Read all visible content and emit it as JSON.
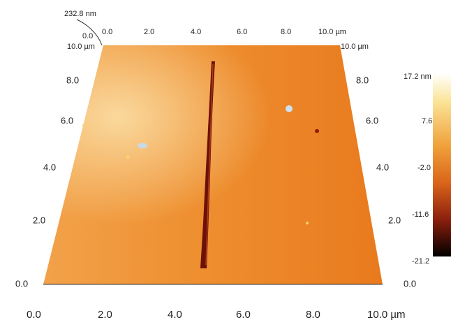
{
  "height_label": "232.8 nm",
  "origin_label": "0.0",
  "top_axis": {
    "ticks": [
      "0.0",
      "2.0",
      "4.0",
      "6.0",
      "8.0",
      "10.0 µm"
    ]
  },
  "left_top_label": "10.0 µm",
  "right_top_label": "10.0 µm",
  "left_axis": {
    "ticks": [
      "8.0",
      "6.0",
      "4.0",
      "2.0",
      "0.0"
    ]
  },
  "right_axis": {
    "ticks": [
      "8.0",
      "6.0",
      "4.0",
      "2.0",
      "0.0"
    ]
  },
  "bottom_axis": {
    "ticks": [
      "0.0",
      "2.0",
      "4.0",
      "6.0",
      "8.0",
      "10.0 µm"
    ]
  },
  "color_scale": {
    "labels": [
      "17.2 nm",
      "7.6",
      "-2.0",
      "-11.6",
      "-21.2"
    ]
  }
}
